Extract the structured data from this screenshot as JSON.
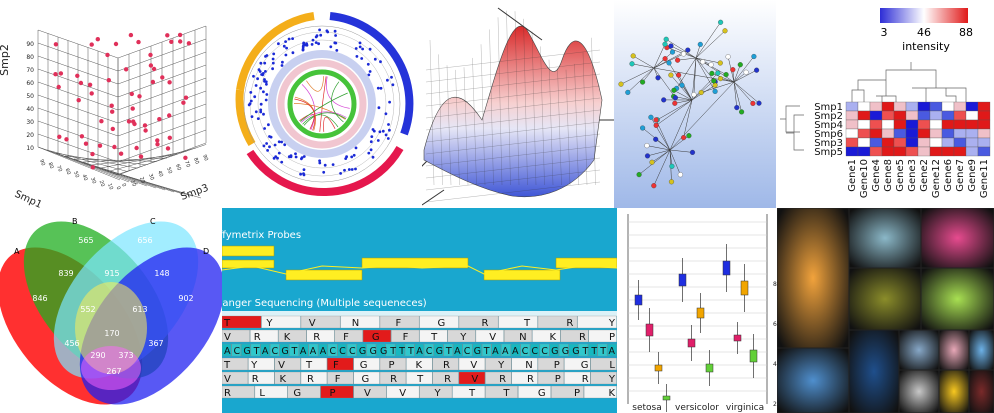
{
  "scatter3d": {
    "y_label": "Smp2",
    "x_label": "Smp1",
    "z_label": "Smp3",
    "y_ticks": [
      "10",
      "20",
      "30",
      "40",
      "50",
      "60",
      "70",
      "80",
      "90"
    ],
    "x_ticks": [
      "90",
      "80",
      "70",
      "60",
      "50",
      "40",
      "30",
      "20",
      "10",
      "0"
    ],
    "z_ticks": [
      "0",
      "10",
      "20",
      "30",
      "40",
      "50",
      "60",
      "70",
      "80",
      "90"
    ]
  },
  "heatmap": {
    "legend_ticks": [
      "3",
      "46",
      "88"
    ],
    "legend_title": "intensity",
    "rows": [
      "Smp1",
      "Smp2",
      "Smp4",
      "Smp6",
      "Smp3",
      "Smp5"
    ],
    "columns": [
      "Gene1",
      "Gene10",
      "Gene4",
      "Gene8",
      "Gene5",
      "Gene3",
      "Gene2",
      "Gene12",
      "Gene6",
      "Gene7",
      "Gene9",
      "Gene11"
    ]
  },
  "venn": {
    "set_labels": [
      "A",
      "B",
      "C",
      "D"
    ],
    "regions": [
      "846",
      "565",
      "656",
      "902",
      "839",
      "915",
      "148",
      "552",
      "613",
      "456",
      "170",
      "367",
      "290",
      "373",
      "267"
    ]
  },
  "tracks": {
    "probes_label": "Affymetrix Probes",
    "sanger_label": "Sanger Sequencing (Multiple sequeneces)",
    "row1": "TYVNFGRTRY",
    "row2": "VRKRFGFTYVNKRP",
    "row3": "ACGTACGTAAACCCGGGTTTACGTACGTAAACCCGGGTTTA",
    "row4": "TYVTFGPKRVYNPGL",
    "row5": "VRKRFGRTRVRRPRY",
    "row6": "RLGPVVYTTGPK"
  },
  "boxplot": {
    "categories": [
      "setosa",
      "versicolor",
      "virginica"
    ],
    "y_ticks": [
      "8",
      "6",
      "4",
      "2"
    ]
  }
}
